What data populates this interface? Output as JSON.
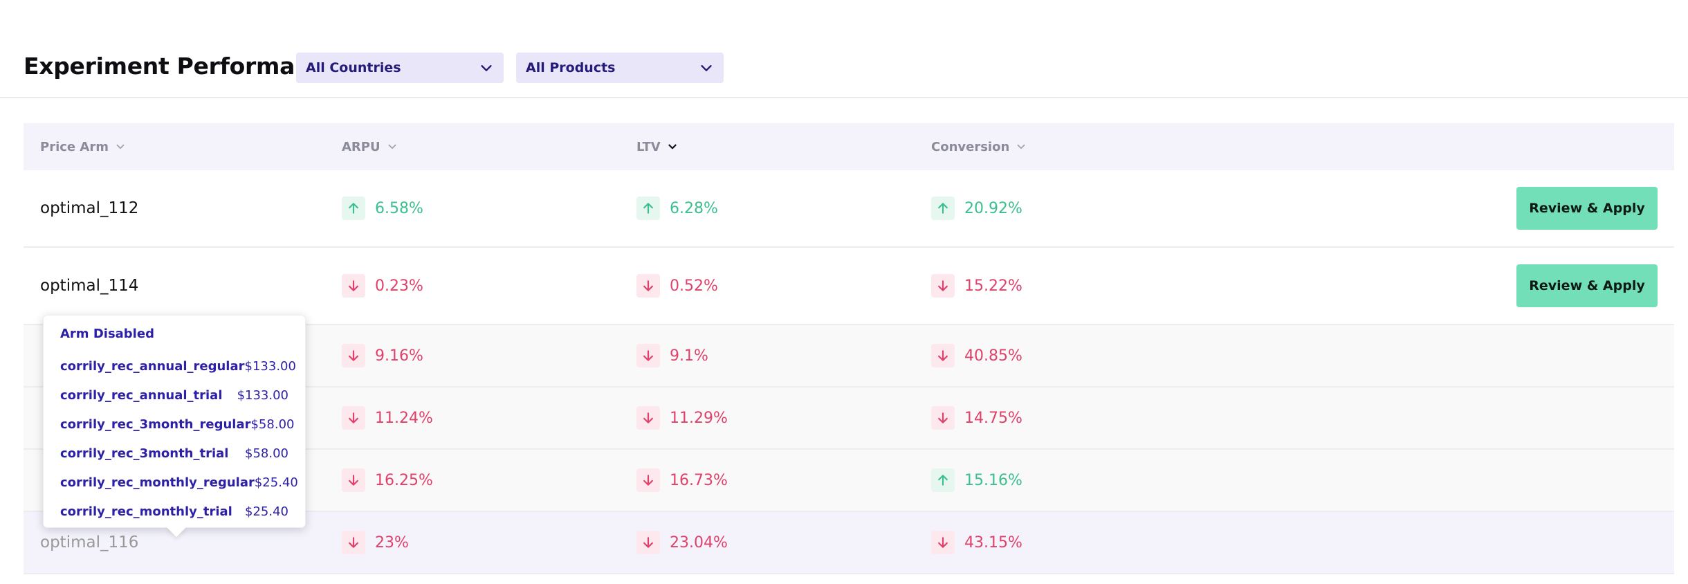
{
  "header": {
    "title": "Experiment Performance",
    "country_filter": "All Countries",
    "product_filter": "All Products"
  },
  "table": {
    "columns": [
      "Price Arm",
      "ARPU",
      "LTV",
      "Conversion"
    ],
    "sorted_column": "LTV",
    "action_label": "Review & Apply",
    "rows": [
      {
        "name": "optimal_112",
        "arpu": "6.58%",
        "arpu_dir": "up",
        "ltv": "6.28%",
        "ltv_dir": "up",
        "conv": "20.92%",
        "conv_dir": "up"
      },
      {
        "name": "optimal_114",
        "arpu": "0.23%",
        "arpu_dir": "down",
        "ltv": "0.52%",
        "ltv_dir": "down",
        "conv": "15.22%",
        "conv_dir": "down"
      },
      {
        "name": "",
        "arpu": "9.16%",
        "arpu_dir": "down",
        "ltv": "9.1%",
        "ltv_dir": "down",
        "conv": "40.85%",
        "conv_dir": "down"
      },
      {
        "name": "",
        "arpu": "11.24%",
        "arpu_dir": "down",
        "ltv": "11.29%",
        "ltv_dir": "down",
        "conv": "14.75%",
        "conv_dir": "down"
      },
      {
        "name": "",
        "arpu": "16.25%",
        "arpu_dir": "down",
        "ltv": "16.73%",
        "ltv_dir": "down",
        "conv": "15.16%",
        "conv_dir": "up"
      },
      {
        "name": "optimal_116",
        "arpu": "23%",
        "arpu_dir": "down",
        "ltv": "23.04%",
        "ltv_dir": "down",
        "conv": "43.15%",
        "conv_dir": "down"
      }
    ]
  },
  "popover": {
    "title": "Arm Disabled",
    "items": [
      {
        "name": "corrily_rec_annual_regular",
        "price": "$133.00"
      },
      {
        "name": "corrily_rec_annual_trial",
        "price": "$133.00"
      },
      {
        "name": "corrily_rec_3month_regular",
        "price": "$58.00"
      },
      {
        "name": "corrily_rec_3month_trial",
        "price": "$58.00"
      },
      {
        "name": "corrily_rec_monthly_regular",
        "price": "$25.40"
      },
      {
        "name": "corrily_rec_monthly_trial",
        "price": "$25.40"
      }
    ]
  },
  "colors": {
    "up": "#3cbf8f",
    "down": "#e0416a",
    "accent": "#2c1fa8",
    "button": "#72dfb8"
  },
  "icons": {
    "up": "arrow-up-icon",
    "down": "arrow-down-icon",
    "sort": "chevron-down-icon"
  }
}
